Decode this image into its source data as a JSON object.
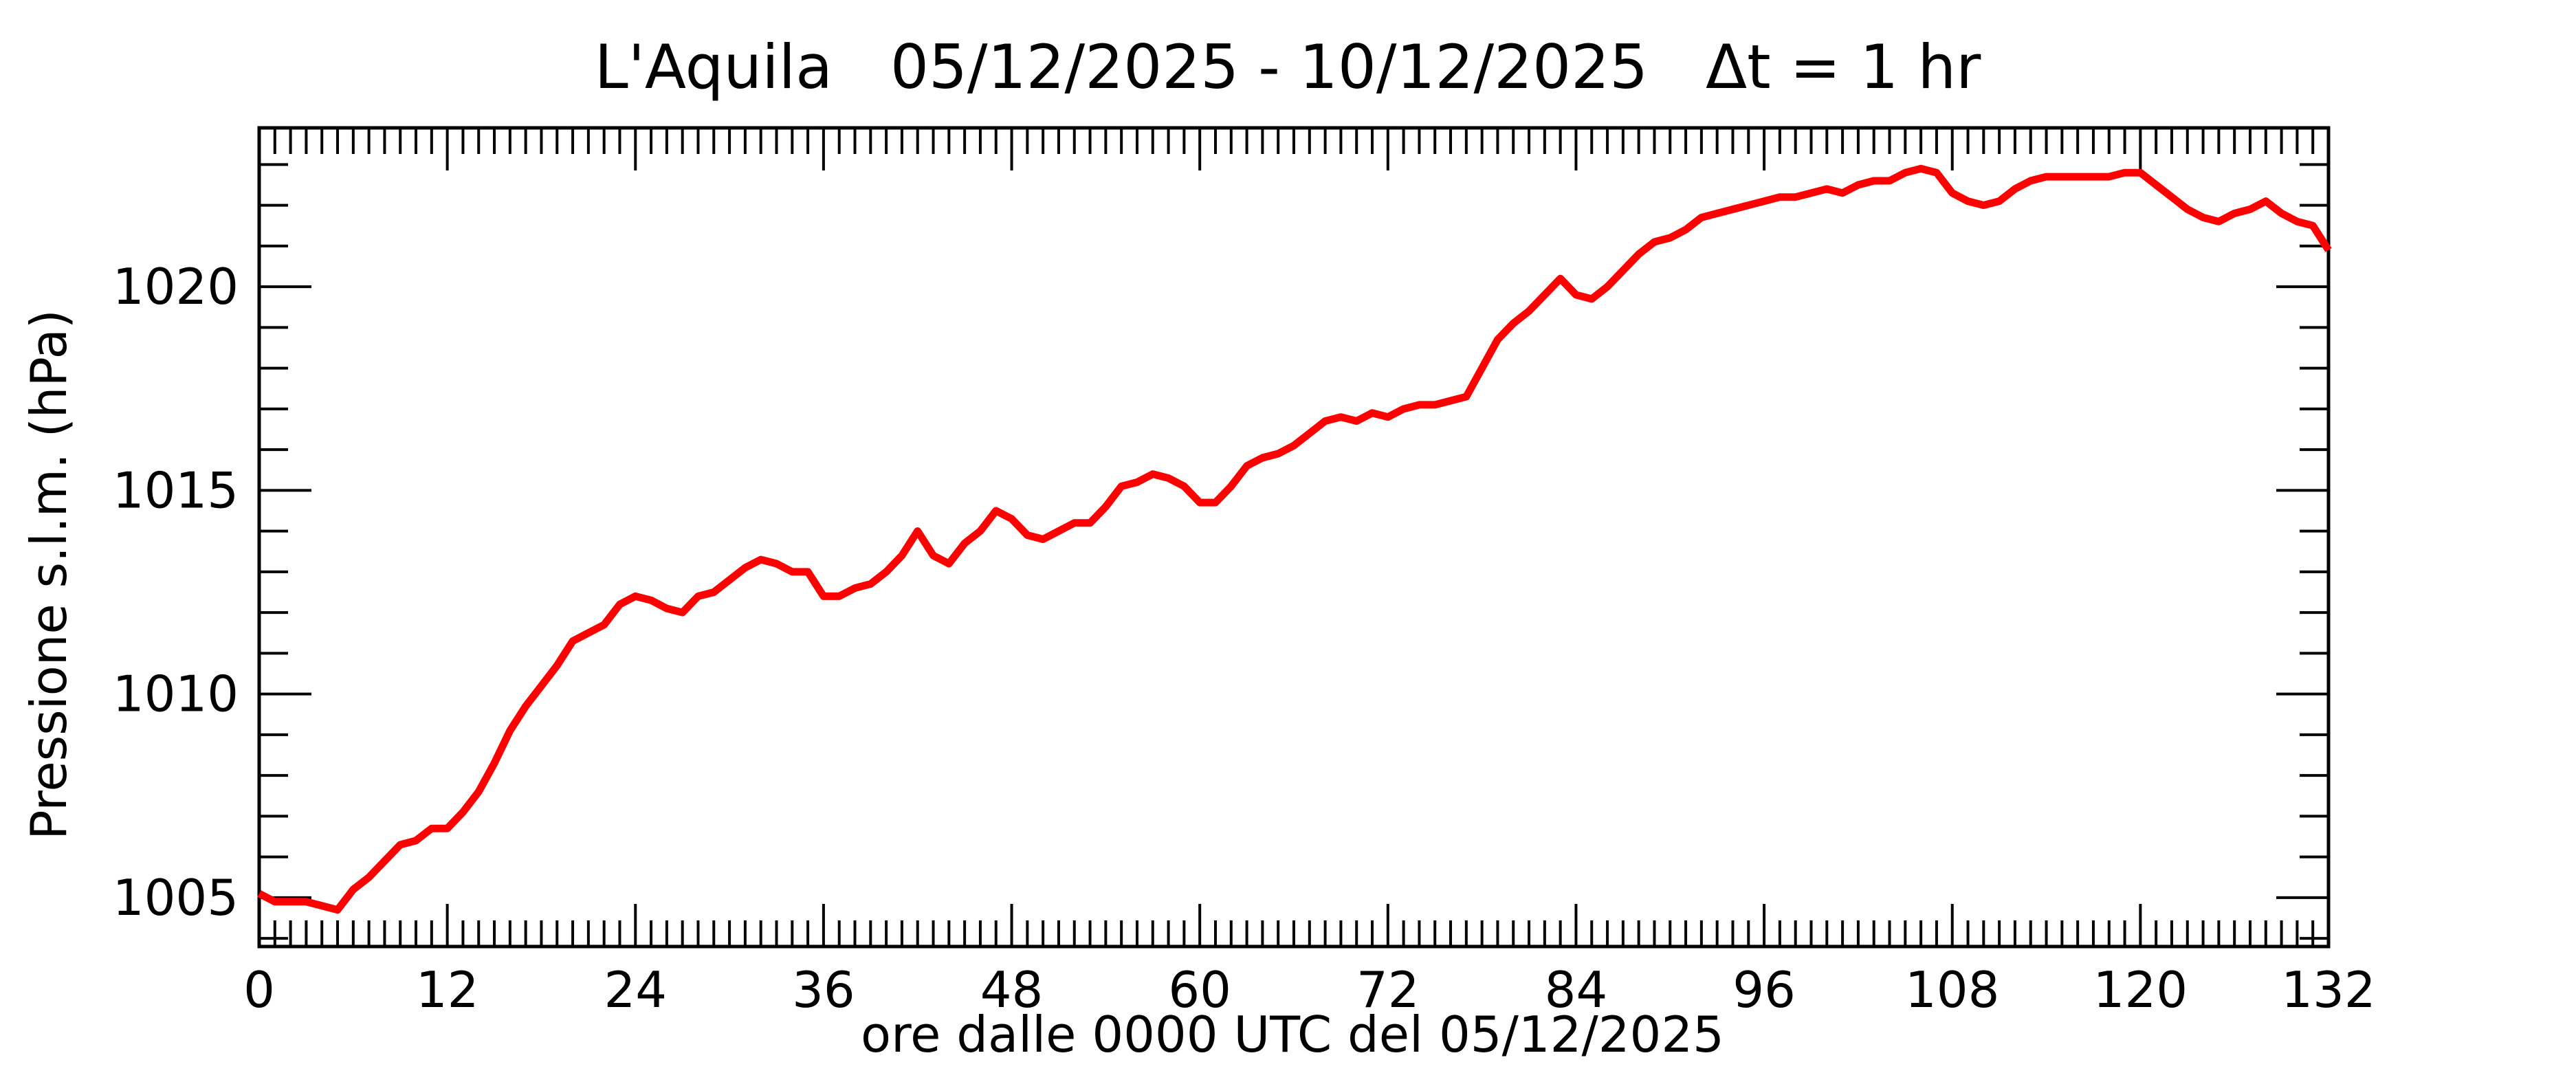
{
  "chart_data": {
    "type": "line",
    "title": "L'Aquila   05/12/2025 - 10/12/2025   Δt = 1 hr",
    "xlabel": "ore dalle 0000 UTC del 05/12/2025",
    "ylabel": "Pressione s.l.m. (hPa)",
    "xlim": [
      0,
      132
    ],
    "ylim": [
      1003.8,
      1023.9
    ],
    "xticks": [
      0,
      12,
      24,
      36,
      48,
      60,
      72,
      84,
      96,
      108,
      120,
      132
    ],
    "yticks": [
      1005,
      1010,
      1015,
      1020
    ],
    "grid": false,
    "series": [
      {
        "color": "#ff0000",
        "x": [
          0,
          1,
          2,
          3,
          4,
          5,
          6,
          7,
          8,
          9,
          10,
          11,
          12,
          13,
          14,
          15,
          16,
          17,
          18,
          19,
          20,
          21,
          22,
          23,
          24,
          25,
          26,
          27,
          28,
          29,
          30,
          31,
          32,
          33,
          34,
          35,
          36,
          37,
          38,
          39,
          40,
          41,
          42,
          43,
          44,
          45,
          46,
          47,
          48,
          49,
          50,
          51,
          52,
          53,
          54,
          55,
          56,
          57,
          58,
          59,
          60,
          61,
          62,
          63,
          64,
          65,
          66,
          67,
          68,
          69,
          70,
          71,
          72,
          73,
          74,
          75,
          76,
          77,
          78,
          79,
          80,
          81,
          82,
          83,
          84,
          85,
          86,
          87,
          88,
          89,
          90,
          91,
          92,
          93,
          94,
          95,
          96,
          97,
          98,
          99,
          100,
          101,
          102,
          103,
          104,
          105,
          106,
          107,
          108,
          109,
          110,
          111,
          112,
          113,
          114,
          115,
          116,
          117,
          118,
          119,
          120,
          121,
          122,
          123,
          124,
          125,
          126,
          127,
          128,
          129,
          130,
          131,
          132
        ],
        "y": [
          1005.1,
          1004.9,
          1004.9,
          1004.9,
          1004.8,
          1004.7,
          1005.2,
          1005.5,
          1005.9,
          1006.3,
          1006.4,
          1006.7,
          1006.7,
          1007.1,
          1007.6,
          1008.3,
          1009.1,
          1009.7,
          1010.2,
          1010.7,
          1011.3,
          1011.5,
          1011.7,
          1012.2,
          1012.4,
          1012.3,
          1012.1,
          1012.0,
          1012.4,
          1012.5,
          1012.8,
          1013.1,
          1013.3,
          1013.2,
          1013.0,
          1013.0,
          1012.4,
          1012.4,
          1012.6,
          1012.7,
          1013.0,
          1013.4,
          1014.0,
          1013.4,
          1013.2,
          1013.7,
          1014.0,
          1014.5,
          1014.3,
          1013.9,
          1013.8,
          1014.0,
          1014.2,
          1014.2,
          1014.6,
          1015.1,
          1015.2,
          1015.4,
          1015.3,
          1015.1,
          1014.7,
          1014.7,
          1015.1,
          1015.6,
          1015.8,
          1015.9,
          1016.1,
          1016.4,
          1016.7,
          1016.8,
          1016.7,
          1016.9,
          1016.8,
          1017.0,
          1017.1,
          1017.1,
          1017.2,
          1017.3,
          1018.0,
          1018.7,
          1019.1,
          1019.4,
          1019.8,
          1020.2,
          1019.8,
          1019.7,
          1020.0,
          1020.4,
          1020.8,
          1021.1,
          1021.2,
          1021.4,
          1021.7,
          1021.8,
          1021.9,
          1022.0,
          1022.1,
          1022.2,
          1022.2,
          1022.3,
          1022.4,
          1022.3,
          1022.5,
          1022.6,
          1022.6,
          1022.8,
          1022.9,
          1022.8,
          1022.3,
          1022.1,
          1022.0,
          1022.1,
          1022.4,
          1022.6,
          1022.7,
          1022.7,
          1022.7,
          1022.7,
          1022.7,
          1022.8,
          1022.8,
          1022.5,
          1022.2,
          1021.9,
          1021.7,
          1021.6,
          1021.8,
          1021.9,
          1022.1,
          1021.8,
          1021.6,
          1021.5,
          1020.9
        ]
      }
    ]
  }
}
